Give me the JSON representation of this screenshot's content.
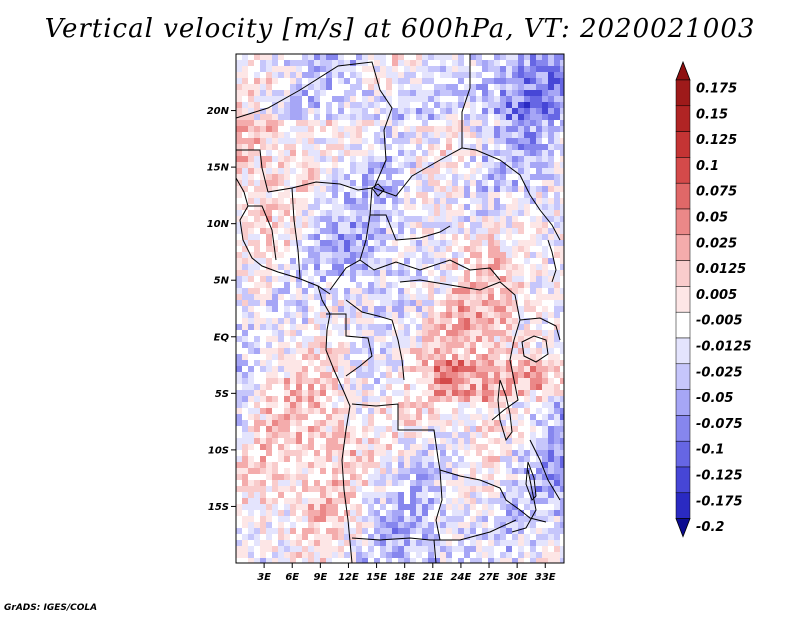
{
  "title": "Vertical velocity [m/s] at 600hPa, VT: 2020021003",
  "credit": "GrADS: IGES/COLA",
  "map": {
    "lon_range": [
      0,
      35
    ],
    "lat_range": [
      -20,
      25
    ],
    "lat_ticks": [
      {
        "value": 20,
        "label": "20N"
      },
      {
        "value": 15,
        "label": "15N"
      },
      {
        "value": 10,
        "label": "10N"
      },
      {
        "value": 5,
        "label": "5N"
      },
      {
        "value": 0,
        "label": "EQ"
      },
      {
        "value": -5,
        "label": "5S"
      },
      {
        "value": -10,
        "label": "10S"
      },
      {
        "value": -15,
        "label": "15S"
      }
    ],
    "lon_ticks": [
      {
        "value": 3,
        "label": "3E"
      },
      {
        "value": 6,
        "label": "6E"
      },
      {
        "value": 9,
        "label": "9E"
      },
      {
        "value": 12,
        "label": "12E"
      },
      {
        "value": 15,
        "label": "15E"
      },
      {
        "value": 18,
        "label": "18E"
      },
      {
        "value": 21,
        "label": "21E"
      },
      {
        "value": 24,
        "label": "24E"
      },
      {
        "value": 27,
        "label": "27E"
      },
      {
        "value": 30,
        "label": "30E"
      },
      {
        "value": 33,
        "label": "33E"
      }
    ]
  },
  "colorbar": {
    "levels": [
      {
        "label": "0.175",
        "color": "#9e1a1a"
      },
      {
        "label": "0.15",
        "color": "#b02424"
      },
      {
        "label": "0.125",
        "color": "#c43434"
      },
      {
        "label": "0.1",
        "color": "#d44a4a"
      },
      {
        "label": "0.075",
        "color": "#e06868"
      },
      {
        "label": "0.05",
        "color": "#eb8888"
      },
      {
        "label": "0.025",
        "color": "#f4acac"
      },
      {
        "label": "0.0125",
        "color": "#f9cccc"
      },
      {
        "label": "0.005",
        "color": "#fde6e6"
      },
      {
        "label": "-0.005",
        "color": "#ffffff"
      },
      {
        "label": "-0.0125",
        "color": "#e4e4fd"
      },
      {
        "label": "-0.025",
        "color": "#c6c6fb"
      },
      {
        "label": "-0.05",
        "color": "#a6a6f6"
      },
      {
        "label": "-0.075",
        "color": "#8686ee"
      },
      {
        "label": "-0.1",
        "color": "#6666e4"
      },
      {
        "label": "-0.125",
        "color": "#4646d6"
      },
      {
        "label": "-0.175",
        "color": "#2a2ac2"
      },
      {
        "label": "-0.2",
        "color": "#1616a8"
      }
    ],
    "top_color": "#8e1010",
    "bottom_color": "#0c0c90"
  }
}
